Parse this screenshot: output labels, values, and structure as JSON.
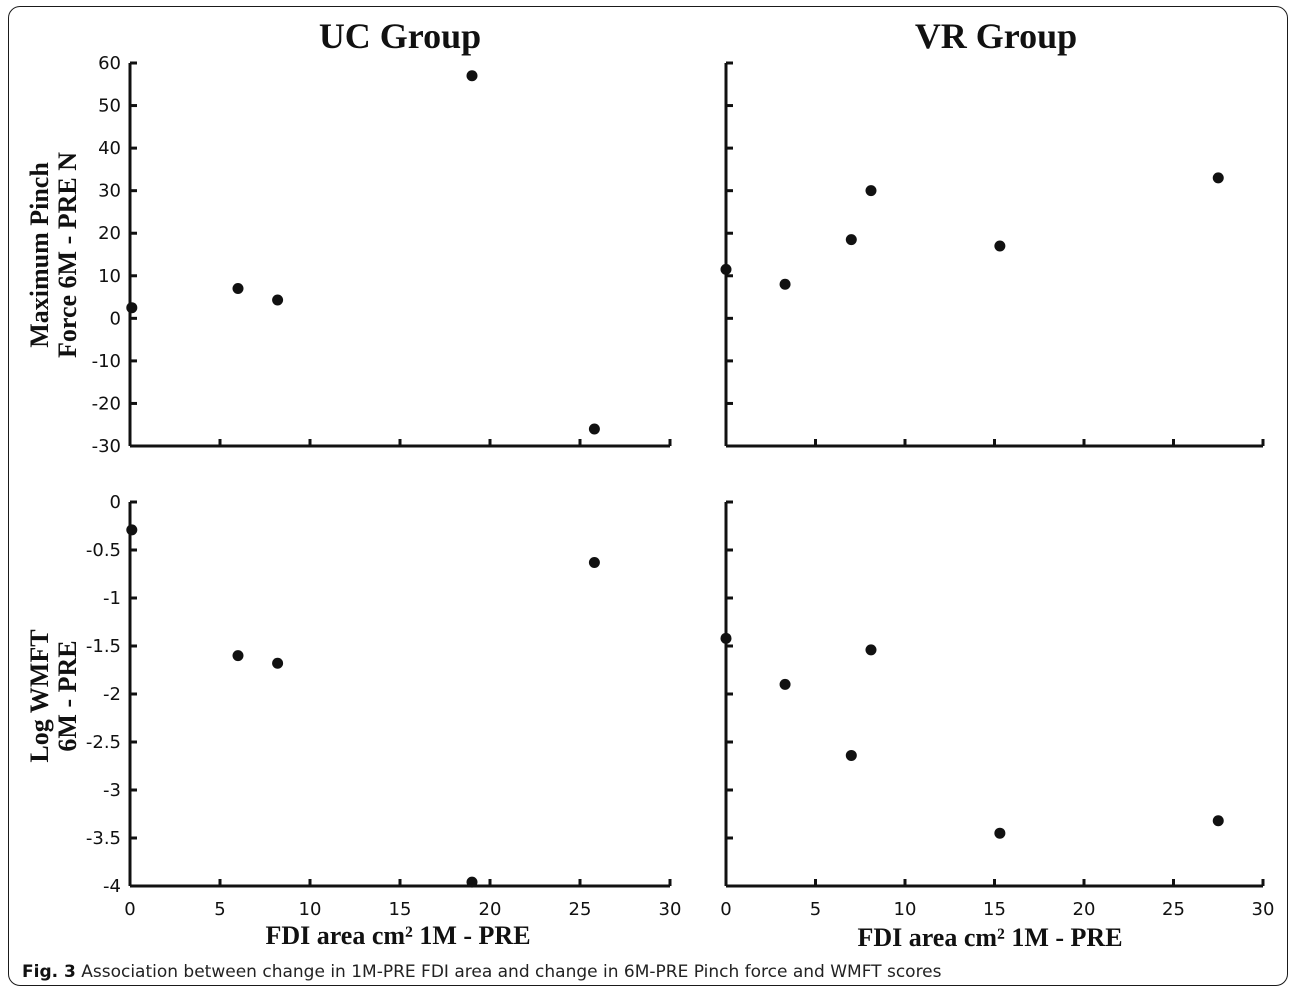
{
  "titles": {
    "left": "UC Group",
    "right": "VR Group"
  },
  "y_labels": {
    "top_line1": "Maximum Pinch",
    "top_line2": "Force 6M - PRE N",
    "bottom_line1": "Log WMFT",
    "bottom_line2": "6M - PRE"
  },
  "x_label": "FDI area cm² 1M - PRE",
  "caption": {
    "lead": "Fig. 3",
    "text": " Association between change in 1M-PRE FDI area and change in 6M-PRE Pinch force and WMFT scores"
  },
  "colors": {
    "marker": "#111111",
    "axis": "#111111",
    "frame": "#1a1a1a"
  },
  "chart_data": [
    {
      "id": "uc_pinch",
      "type": "scatter",
      "group": "UC Group",
      "xlim": [
        0,
        30
      ],
      "ylim": [
        -30,
        60
      ],
      "x_ticks": [
        0,
        5,
        10,
        15,
        20,
        25,
        30
      ],
      "y_ticks": [
        -30,
        -20,
        -10,
        0,
        10,
        20,
        30,
        40,
        50,
        60
      ],
      "show_x_tick_labels": false,
      "show_y_tick_labels": true,
      "grid": false,
      "points": [
        {
          "x": 0.1,
          "y": 2.5
        },
        {
          "x": 6.0,
          "y": 7.0
        },
        {
          "x": 8.2,
          "y": 4.3
        },
        {
          "x": 19.0,
          "y": 57.0
        },
        {
          "x": 25.8,
          "y": -26.0
        }
      ]
    },
    {
      "id": "vr_pinch",
      "type": "scatter",
      "group": "VR Group",
      "xlim": [
        0,
        30
      ],
      "ylim": [
        -30,
        60
      ],
      "x_ticks": [
        0,
        5,
        10,
        15,
        20,
        25,
        30
      ],
      "y_ticks": [
        -30,
        -20,
        -10,
        0,
        10,
        20,
        30,
        40,
        50,
        60
      ],
      "show_x_tick_labels": false,
      "show_y_tick_labels": false,
      "grid": false,
      "points": [
        {
          "x": 0.0,
          "y": 11.5
        },
        {
          "x": 3.3,
          "y": 8.0
        },
        {
          "x": 7.0,
          "y": 18.5
        },
        {
          "x": 8.1,
          "y": 30.0
        },
        {
          "x": 15.3,
          "y": 17.0
        },
        {
          "x": 27.5,
          "y": 33.0
        }
      ]
    },
    {
      "id": "uc_wmft",
      "type": "scatter",
      "group": "UC Group",
      "xlim": [
        0,
        30
      ],
      "ylim": [
        -4,
        0
      ],
      "x_ticks": [
        0,
        5,
        10,
        15,
        20,
        25,
        30
      ],
      "y_ticks": [
        -4,
        -3.5,
        -3,
        -2.5,
        -2,
        -1.5,
        -1,
        -0.5,
        0
      ],
      "show_x_tick_labels": true,
      "show_y_tick_labels": true,
      "grid": false,
      "points": [
        {
          "x": 0.1,
          "y": -0.29
        },
        {
          "x": 6.0,
          "y": -1.6
        },
        {
          "x": 8.2,
          "y": -1.68
        },
        {
          "x": 19.0,
          "y": -3.96
        },
        {
          "x": 25.8,
          "y": -0.63
        }
      ]
    },
    {
      "id": "vr_wmft",
      "type": "scatter",
      "group": "VR Group",
      "xlim": [
        0,
        30
      ],
      "ylim": [
        -4,
        0
      ],
      "x_ticks": [
        0,
        5,
        10,
        15,
        20,
        25,
        30
      ],
      "y_ticks": [
        -4,
        -3.5,
        -3,
        -2.5,
        -2,
        -1.5,
        -1,
        -0.5,
        0
      ],
      "show_x_tick_labels": true,
      "show_y_tick_labels": false,
      "grid": false,
      "points": [
        {
          "x": 0.0,
          "y": -1.42
        },
        {
          "x": 3.3,
          "y": -1.9
        },
        {
          "x": 7.0,
          "y": -2.64
        },
        {
          "x": 8.1,
          "y": -1.54
        },
        {
          "x": 15.3,
          "y": -3.45
        },
        {
          "x": 27.5,
          "y": -3.32
        }
      ]
    }
  ]
}
